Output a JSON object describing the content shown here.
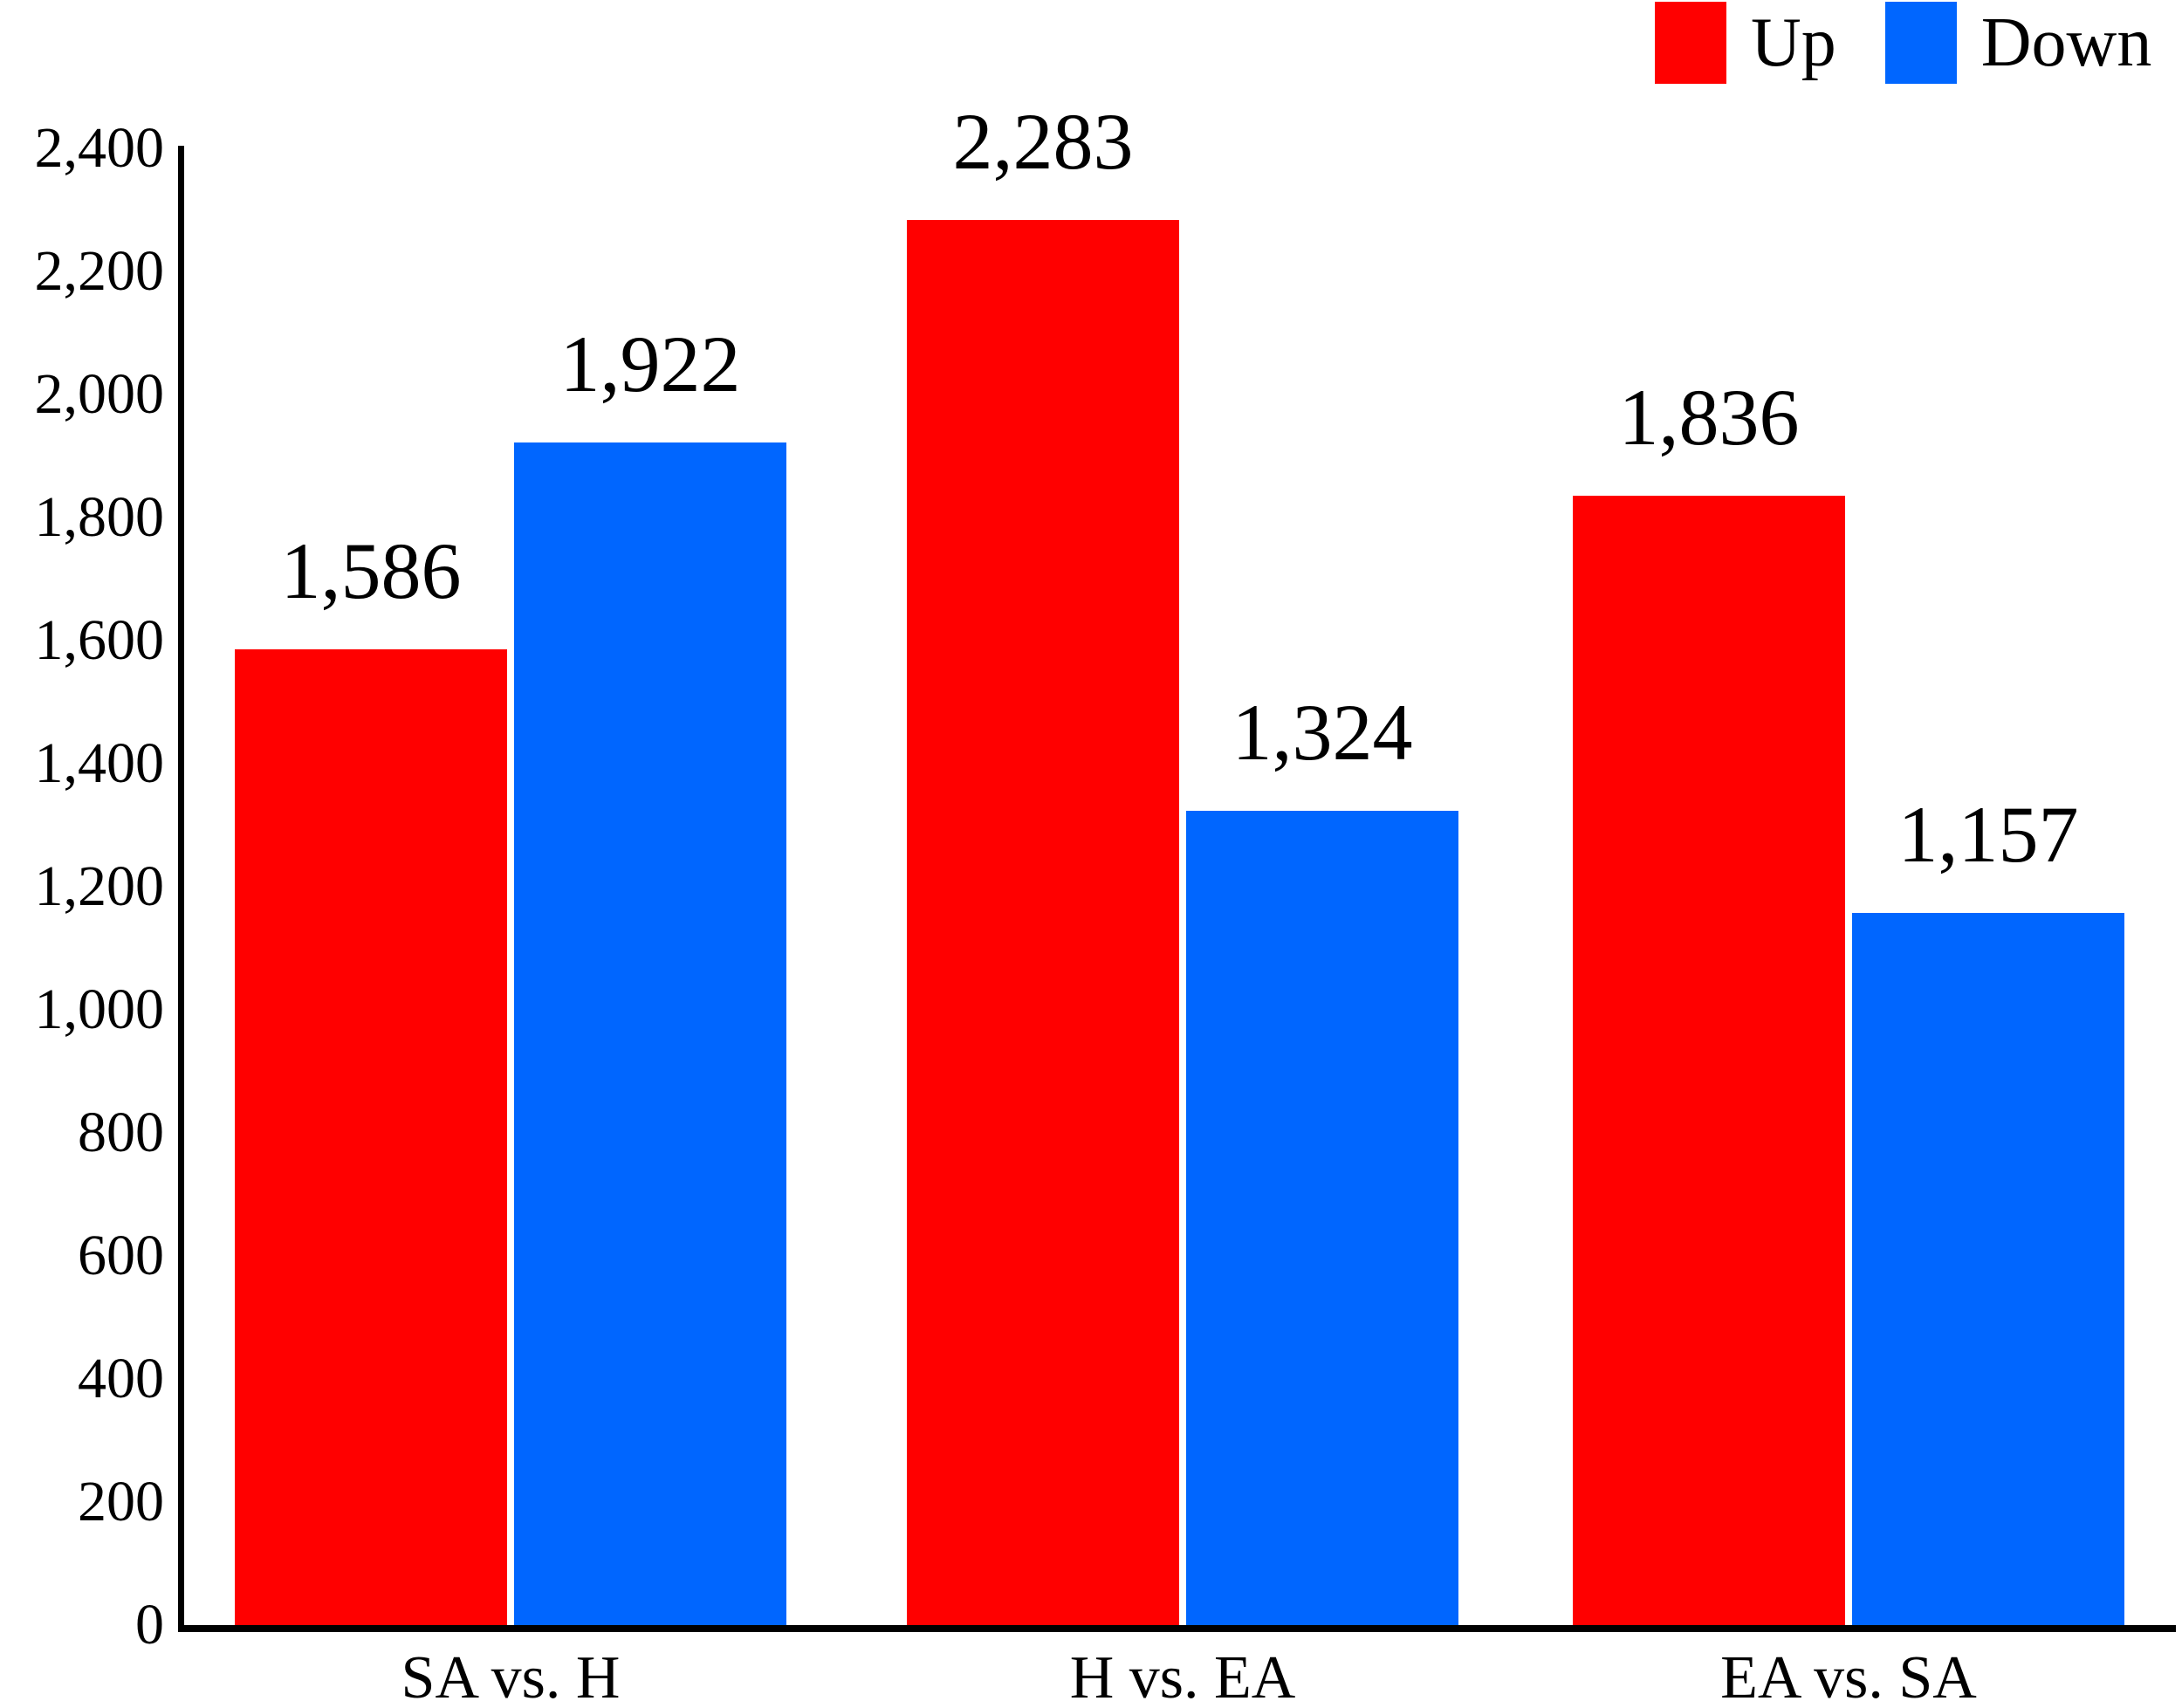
{
  "chart_data": {
    "type": "bar",
    "title": "",
    "xlabel": "",
    "ylabel": "",
    "grid": false,
    "legend_position": "top-right",
    "categories": [
      "SA vs. H",
      "H vs. EA",
      "EA vs. SA"
    ],
    "series": [
      {
        "name": "Up",
        "color": "#ff0000",
        "values": [
          1586,
          2283,
          1836
        ],
        "labels": [
          "1,586",
          "2,283",
          "1,836"
        ]
      },
      {
        "name": "Down",
        "color": "#0066ff",
        "values": [
          1922,
          1324,
          1157
        ],
        "labels": [
          "1,922",
          "1,324",
          "1,157"
        ]
      }
    ],
    "ylim": [
      0,
      2400
    ],
    "y_tick_step": 200,
    "y_ticks": [
      0,
      200,
      400,
      600,
      800,
      1000,
      1200,
      1400,
      1600,
      1800,
      2000,
      2200,
      2400
    ],
    "y_tick_labels": [
      "0",
      "200",
      "400",
      "600",
      "800",
      "1,000",
      "1,200",
      "1,400",
      "1,600",
      "1,800",
      "2,000",
      "2,200",
      "2,400"
    ]
  },
  "legend": {
    "items": [
      {
        "label": "Up",
        "color": "#ff0000"
      },
      {
        "label": "Down",
        "color": "#0066ff"
      }
    ]
  },
  "colors": {
    "axis": "#000000",
    "text": "#000000",
    "background": "#ffffff"
  }
}
